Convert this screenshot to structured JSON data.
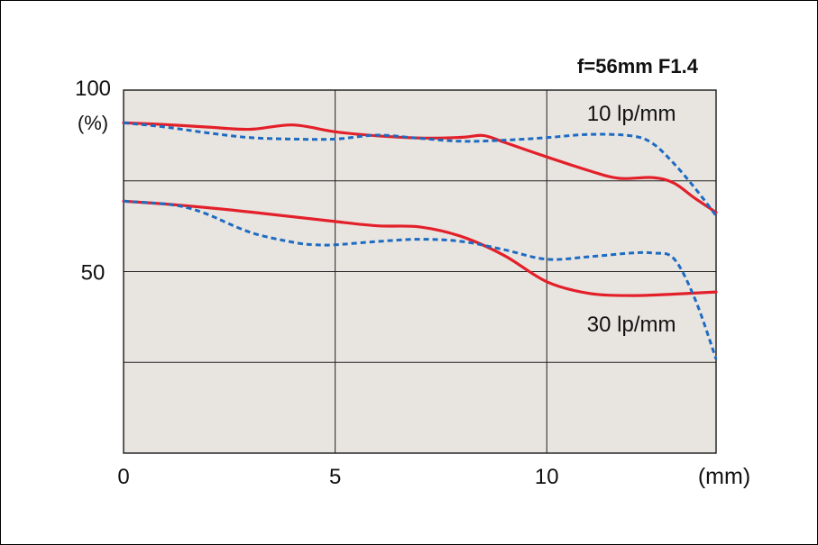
{
  "chart_data": {
    "type": "line",
    "title": "f=56mm F1.4",
    "xlabel": "(mm)",
    "ylabel": "(%)",
    "xlim": [
      0,
      14
    ],
    "ylim": [
      0,
      100
    ],
    "x_ticks": [
      "0",
      "5",
      "10"
    ],
    "y_ticks": [
      "100",
      "50"
    ],
    "x_grid": [
      5,
      10
    ],
    "y_grid": [
      25,
      50,
      75
    ],
    "grid": true,
    "colors": {
      "plot_bg": "#e8e5e0",
      "solid": "#e3202a",
      "dashed": "#1e6bc2",
      "grid": "#222222"
    },
    "annotations": [
      {
        "text": "10 lp/mm",
        "x": 12.0,
        "y": 93.5
      },
      {
        "text": "30 lp/mm",
        "x": 12.0,
        "y": 35.5
      }
    ],
    "series": [
      {
        "style": "solid",
        "color": "#e3202a",
        "x": [
          0,
          1,
          2,
          3,
          4,
          5,
          6,
          7,
          8,
          8.5,
          9,
          10,
          11,
          11.7,
          12.5,
          13,
          13.5,
          14
        ],
        "y": [
          91,
          90.5,
          89.8,
          89.2,
          90.4,
          88.5,
          87.4,
          86.8,
          87,
          87.5,
          85.6,
          81.6,
          77.8,
          75.7,
          75.9,
          74.4,
          70.2,
          66.3
        ]
      },
      {
        "style": "dashed",
        "color": "#1e6bc2",
        "x": [
          0,
          1,
          2,
          3,
          4,
          5,
          6,
          7,
          8,
          9,
          10,
          11,
          12,
          12.5,
          13,
          13.5,
          14
        ],
        "y": [
          91,
          89.8,
          88.2,
          86.9,
          86.5,
          86.5,
          87.6,
          86.7,
          85.9,
          86.2,
          86.9,
          87.8,
          87.4,
          85.3,
          79.8,
          73,
          65.4
        ]
      },
      {
        "style": "solid",
        "color": "#e3202a",
        "x": [
          0,
          1,
          2,
          3,
          4,
          5,
          6,
          7,
          8,
          9,
          10,
          11,
          12,
          13,
          14
        ],
        "y": [
          69.4,
          68.6,
          67.6,
          66.4,
          65.1,
          63.8,
          62.6,
          62.3,
          59.6,
          54.4,
          47.2,
          44,
          43.4,
          43.8,
          44.4
        ]
      },
      {
        "style": "dashed",
        "color": "#1e6bc2",
        "x": [
          0,
          1,
          1.5,
          2,
          3,
          4,
          4.5,
          5,
          6,
          7,
          8,
          9,
          10,
          11,
          12,
          12.5,
          13,
          13.5,
          14
        ],
        "y": [
          69.4,
          68.6,
          67.6,
          65.7,
          60.8,
          58.1,
          57.4,
          57.4,
          58.3,
          58.9,
          58.3,
          56,
          53.4,
          54.1,
          55.1,
          55.1,
          53.6,
          42.5,
          25.9
        ]
      }
    ]
  }
}
